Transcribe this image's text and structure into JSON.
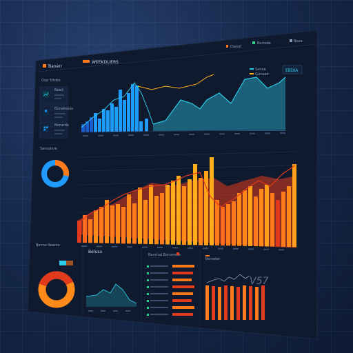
{
  "colors": {
    "panel": "#0f1a2e",
    "panel_edge": "#1c2a44",
    "accent_orange": "#ff7a1a",
    "accent_red": "#e23a1c",
    "accent_yellow": "#ffae1a",
    "accent_blue": "#1f9bff",
    "accent_cyan": "#2ccbe8",
    "accent_teal": "#1e6f86"
  },
  "header": {
    "brand_label": "Banerr",
    "tab_label": "WEEKDLIERS",
    "btn_right_1": "Daexd",
    "btn_right_2": "Barreda",
    "btn_right_3": "Beaa"
  },
  "sidebar": {
    "section_label": "Oop Sttdes",
    "items": [
      {
        "icon": "chart-icon",
        "label": "Bead"
      },
      {
        "icon": "user-icon",
        "label": "Bonakoese"
      },
      {
        "icon": "grid-icon",
        "label": "Bonarde"
      }
    ]
  },
  "top_chart": {
    "legend_1": "Sanae",
    "legend_2": "Gunaad",
    "badge_label": "EBDIA"
  },
  "donut1": {
    "label": "Sansalore",
    "values": [
      0.72,
      0.28
    ]
  },
  "donut2": {
    "label": "Benno Seamo",
    "values": [
      0.62,
      0.38
    ]
  },
  "bottom_panels": {
    "line_panel_title": "Belusa",
    "bars_panel_title": "Barntud Borvereca",
    "stripes_panel_title": "Borseter",
    "stripes_value": "V57"
  }
}
